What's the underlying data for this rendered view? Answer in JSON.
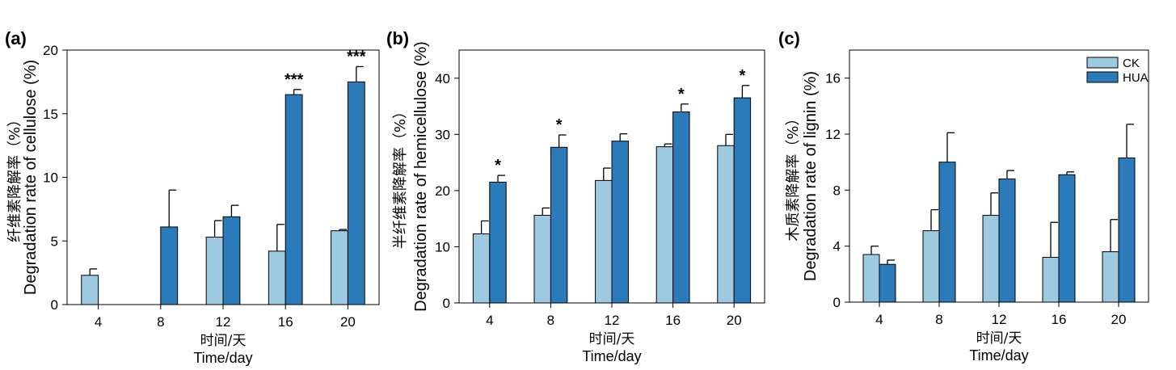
{
  "colors": {
    "CK": "#9ecae1",
    "HUA": "#2b7bba",
    "stroke": "#000000"
  },
  "chart_data": [
    {
      "type": "bar",
      "panel_label": "(a)",
      "categories": [
        "4",
        "8",
        "12",
        "16",
        "20"
      ],
      "series": [
        {
          "name": "CK",
          "values": [
            2.3,
            0,
            5.3,
            4.2,
            5.8
          ],
          "errors": [
            0.5,
            0,
            1.3,
            2.1,
            0.1
          ]
        },
        {
          "name": "HUA",
          "values": [
            0,
            6.1,
            6.9,
            16.5,
            17.5
          ],
          "errors": [
            0,
            2.9,
            0.9,
            0.4,
            1.2
          ]
        }
      ],
      "significance": [
        "",
        "",
        "",
        "***",
        "***"
      ],
      "ylim": [
        0,
        20
      ],
      "yticks": [
        0,
        5,
        10,
        15,
        20
      ],
      "xlabel_zh": "时间/天",
      "xlabel": "Time/day",
      "ylabel_zh": "纤维素降解率（%）",
      "ylabel": "Degradation rate of cellulose (%)",
      "legend": false
    },
    {
      "type": "bar",
      "panel_label": "(b)",
      "categories": [
        "4",
        "8",
        "12",
        "16",
        "20"
      ],
      "series": [
        {
          "name": "CK",
          "values": [
            12.3,
            15.6,
            21.8,
            27.8,
            28.0
          ],
          "errors": [
            2.3,
            1.3,
            2.2,
            0.5,
            2.0
          ]
        },
        {
          "name": "HUA",
          "values": [
            21.5,
            27.7,
            28.8,
            34.0,
            36.5
          ],
          "errors": [
            1.2,
            2.2,
            1.3,
            1.4,
            2.2
          ]
        }
      ],
      "significance": [
        "*",
        "*",
        "",
        "*",
        "*"
      ],
      "ylim": [
        0,
        45
      ],
      "yticks": [
        0,
        10,
        20,
        30,
        40
      ],
      "xlabel_zh": "时间/天",
      "xlabel": "Time/day",
      "ylabel_zh": "半纤维素降解率（%）",
      "ylabel": "Degradation rate of hemicellulose (%)",
      "legend": false
    },
    {
      "type": "bar",
      "panel_label": "(c)",
      "categories": [
        "4",
        "8",
        "12",
        "16",
        "20"
      ],
      "series": [
        {
          "name": "CK",
          "values": [
            3.4,
            5.1,
            6.2,
            3.2,
            3.6
          ],
          "errors": [
            0.6,
            1.5,
            1.6,
            2.5,
            2.3
          ]
        },
        {
          "name": "HUA",
          "values": [
            2.7,
            10.0,
            8.8,
            9.1,
            10.3
          ],
          "errors": [
            0.3,
            2.1,
            0.6,
            0.2,
            2.4
          ]
        }
      ],
      "significance": [
        "",
        "",
        "",
        "",
        ""
      ],
      "ylim": [
        0,
        18
      ],
      "yticks": [
        0,
        4,
        8,
        12,
        16
      ],
      "xlabel_zh": "时间/天",
      "xlabel": "Time/day",
      "ylabel_zh": "木质素降解率（%）",
      "ylabel": "Degradation rate of lignin (%)",
      "legend": true
    }
  ]
}
